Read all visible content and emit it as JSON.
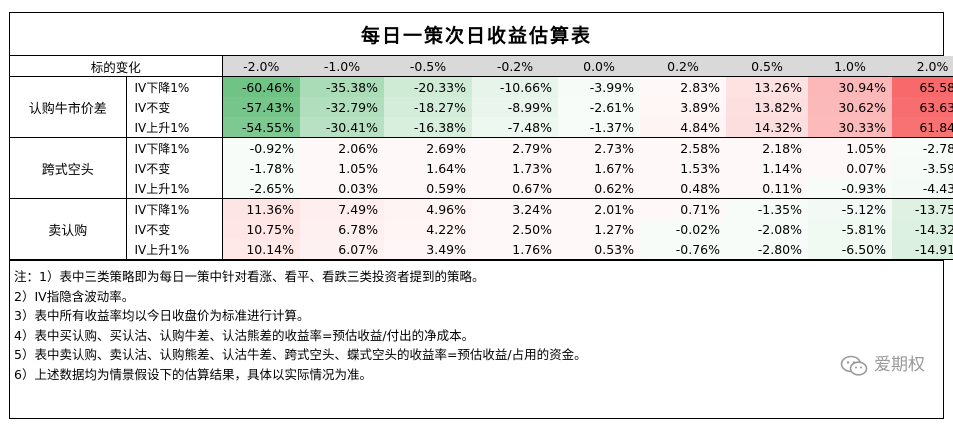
{
  "title": "每日一策次日收益估算表",
  "header": {
    "label": "标的变化",
    "columns": [
      "-2.0%",
      "-1.0%",
      "-0.5%",
      "-0.2%",
      "0.0%",
      "0.2%",
      "0.5%",
      "1.0%",
      "2.0%"
    ]
  },
  "groups": [
    {
      "name": "认购牛市价差",
      "rows": [
        {
          "iv": "IV下降1%",
          "values": [
            "-60.46%",
            "-35.38%",
            "-20.33%",
            "-10.66%",
            "-3.99%",
            "2.83%",
            "13.26%",
            "30.94%",
            "65.58%"
          ]
        },
        {
          "iv": "IV不变",
          "values": [
            "-57.43%",
            "-32.79%",
            "-18.27%",
            "-8.99%",
            "-2.61%",
            "3.89%",
            "13.82%",
            "30.62%",
            "63.63%"
          ]
        },
        {
          "iv": "IV上升1%",
          "values": [
            "-54.55%",
            "-30.41%",
            "-16.38%",
            "-7.48%",
            "-1.37%",
            "4.84%",
            "14.32%",
            "30.33%",
            "61.84%"
          ]
        }
      ]
    },
    {
      "name": "跨式空头",
      "rows": [
        {
          "iv": "IV下降1%",
          "values": [
            "-0.92%",
            "2.06%",
            "2.69%",
            "2.79%",
            "2.73%",
            "2.58%",
            "2.18%",
            "1.05%",
            "-2.78%"
          ]
        },
        {
          "iv": "IV不变",
          "values": [
            "-1.78%",
            "1.05%",
            "1.64%",
            "1.73%",
            "1.67%",
            "1.53%",
            "1.14%",
            "0.07%",
            "-3.59%"
          ]
        },
        {
          "iv": "IV上升1%",
          "values": [
            "-2.65%",
            "0.03%",
            "0.59%",
            "0.67%",
            "0.62%",
            "0.48%",
            "0.11%",
            "-0.93%",
            "-4.43%"
          ]
        }
      ]
    },
    {
      "name": "卖认购",
      "rows": [
        {
          "iv": "IV下降1%",
          "values": [
            "11.36%",
            "7.49%",
            "4.96%",
            "3.24%",
            "2.01%",
            "0.71%",
            "-1.35%",
            "-5.12%",
            "-13.75%"
          ]
        },
        {
          "iv": "IV不变",
          "values": [
            "10.75%",
            "6.78%",
            "4.22%",
            "2.50%",
            "1.27%",
            "-0.02%",
            "-2.08%",
            "-5.81%",
            "-14.32%"
          ]
        },
        {
          "iv": "IV上升1%",
          "values": [
            "10.14%",
            "6.07%",
            "3.49%",
            "1.76%",
            "0.53%",
            "-0.76%",
            "-2.80%",
            "-6.50%",
            "-14.91%"
          ]
        }
      ]
    }
  ],
  "notes": [
    "注：1）表中三类策略即为每日一策中针对看涨、看平、看跌三类投资者提到的策略。",
    "2）IV指隐含波动率。",
    "3）表中所有收益率均以今日收盘价为标准进行计算。",
    "4）表中买认购、买认沽、认购牛差、认沽熊差的收益率=预估收益/付出的净成本。",
    "5）表中卖认购、卖认沽、认购熊差、认沽牛差、跨式空头、蝶式空头的收益率=预估收益/占用的资金。",
    "6）上述数据均为情景假设下的估算结果，具体以实际情况为准。"
  ],
  "watermark": "爱期权",
  "colors": {
    "positive": "#f8696b",
    "negative": "#63be7b",
    "header_bg": "#d9d9d9"
  }
}
